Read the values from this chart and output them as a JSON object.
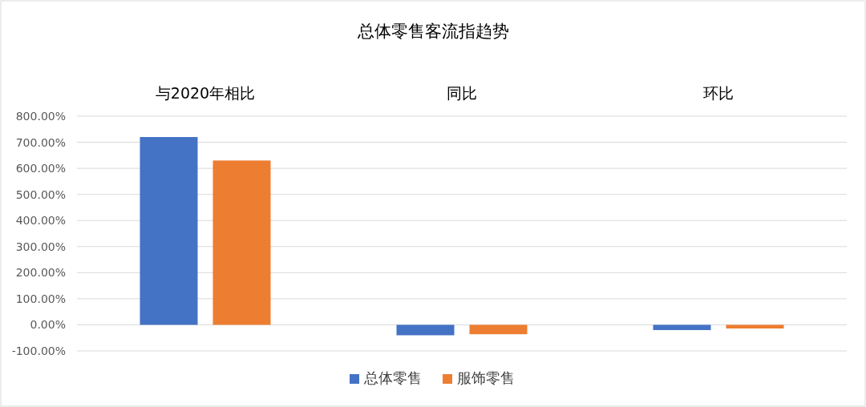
{
  "chart_data": {
    "type": "bar",
    "title": "总体零售客流指趋势",
    "categories": [
      "与2020年相比",
      "同比",
      "环比"
    ],
    "series": [
      {
        "name": "总体零售",
        "color": "#4472c4",
        "values": [
          720,
          -40,
          -20
        ]
      },
      {
        "name": "服饰零售",
        "color": "#ed7d31",
        "values": [
          630,
          -36,
          -14
        ]
      }
    ],
    "ylim": [
      -100,
      800
    ],
    "yticks": [
      {
        "value": -100,
        "label": "-100.00%"
      },
      {
        "value": 0,
        "label": "0.00%"
      },
      {
        "value": 100,
        "label": "100.00%"
      },
      {
        "value": 200,
        "label": "200.00%"
      },
      {
        "value": 300,
        "label": "300.00%"
      },
      {
        "value": 400,
        "label": "400.00%"
      },
      {
        "value": 500,
        "label": "500.00%"
      },
      {
        "value": 600,
        "label": "600.00%"
      },
      {
        "value": 700,
        "label": "700.00%"
      },
      {
        "value": 800,
        "label": "800.00%"
      }
    ],
    "grid": "y",
    "legend": "bottom"
  }
}
